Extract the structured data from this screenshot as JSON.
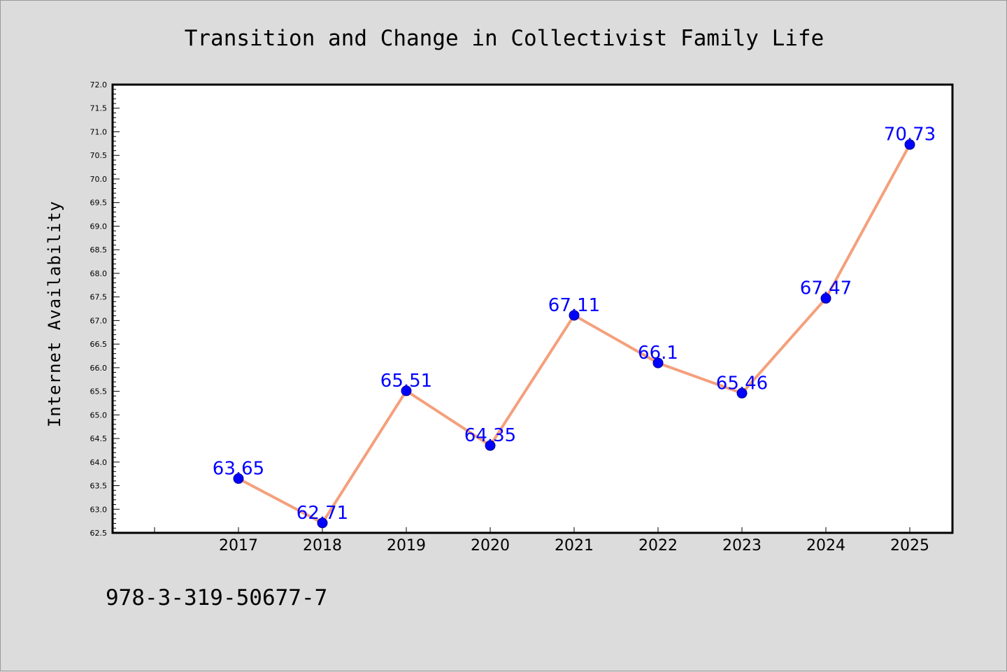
{
  "chart_data": {
    "type": "line",
    "title": "Transition and Change in Collectivist Family Life",
    "xlabel": "",
    "ylabel": "Internet Availability",
    "categories": [
      "2017",
      "2018",
      "2019",
      "2020",
      "2021",
      "2022",
      "2023",
      "2024",
      "2025"
    ],
    "series": [
      {
        "values": [
          63.65,
          62.71,
          65.51,
          64.35,
          67.11,
          66.1,
          65.46,
          67.47,
          70.73
        ]
      }
    ],
    "data_labels": [
      "63.65",
      "62.71",
      "65.51",
      "64.35",
      "67.11",
      "66.1",
      "65.46",
      "67.47",
      "70.73"
    ],
    "ylim": [
      62.5,
      72.0
    ],
    "ytick_labels": [
      "62.5",
      "63.0",
      "63.5",
      "64.0",
      "64.5",
      "65.0",
      "65.5",
      "66.0",
      "66.5",
      "67.0",
      "67.5",
      "68.0",
      "68.5",
      "69.0",
      "69.5",
      "70.0",
      "70.5",
      "71.0",
      "71.5",
      "72.0"
    ],
    "grid": false,
    "legend": "none"
  },
  "footer_text": "978-3-319-50677-7",
  "colors": {
    "background": "#dcdcdc",
    "plot_background": "#ffffff",
    "line": "#f4a07c",
    "marker": "#0000ff",
    "data_label": "#0000ff"
  }
}
